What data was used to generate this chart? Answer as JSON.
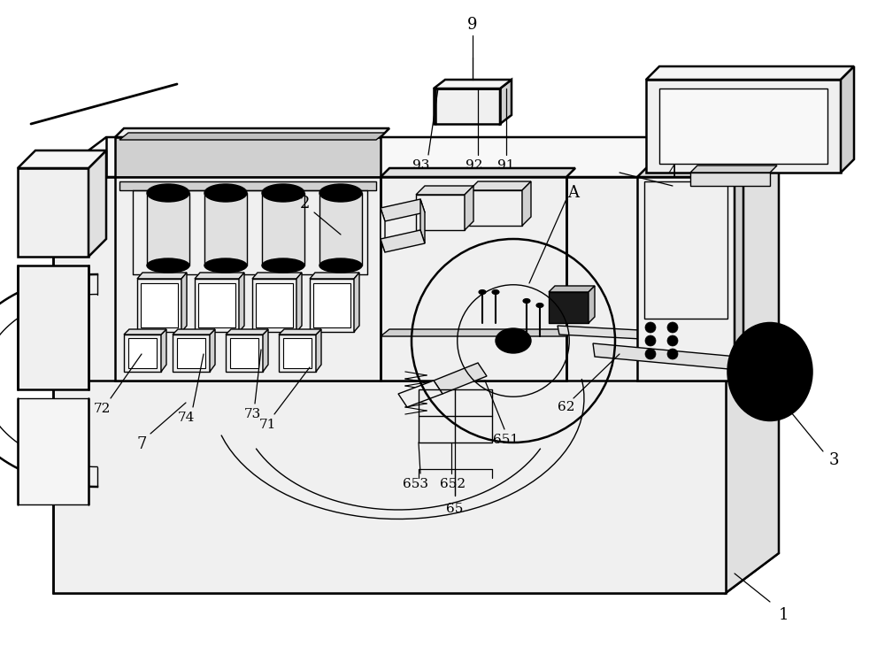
{
  "background_color": "#ffffff",
  "line_color": "#000000",
  "figsize": [
    10.0,
    7.48
  ],
  "dpi": 100,
  "gray1": "#f0f0f0",
  "gray2": "#e0e0e0",
  "gray3": "#d0d0d0",
  "gray4": "#c0c0c0",
  "gray5": "#a0a0a0",
  "dark": "#404040"
}
